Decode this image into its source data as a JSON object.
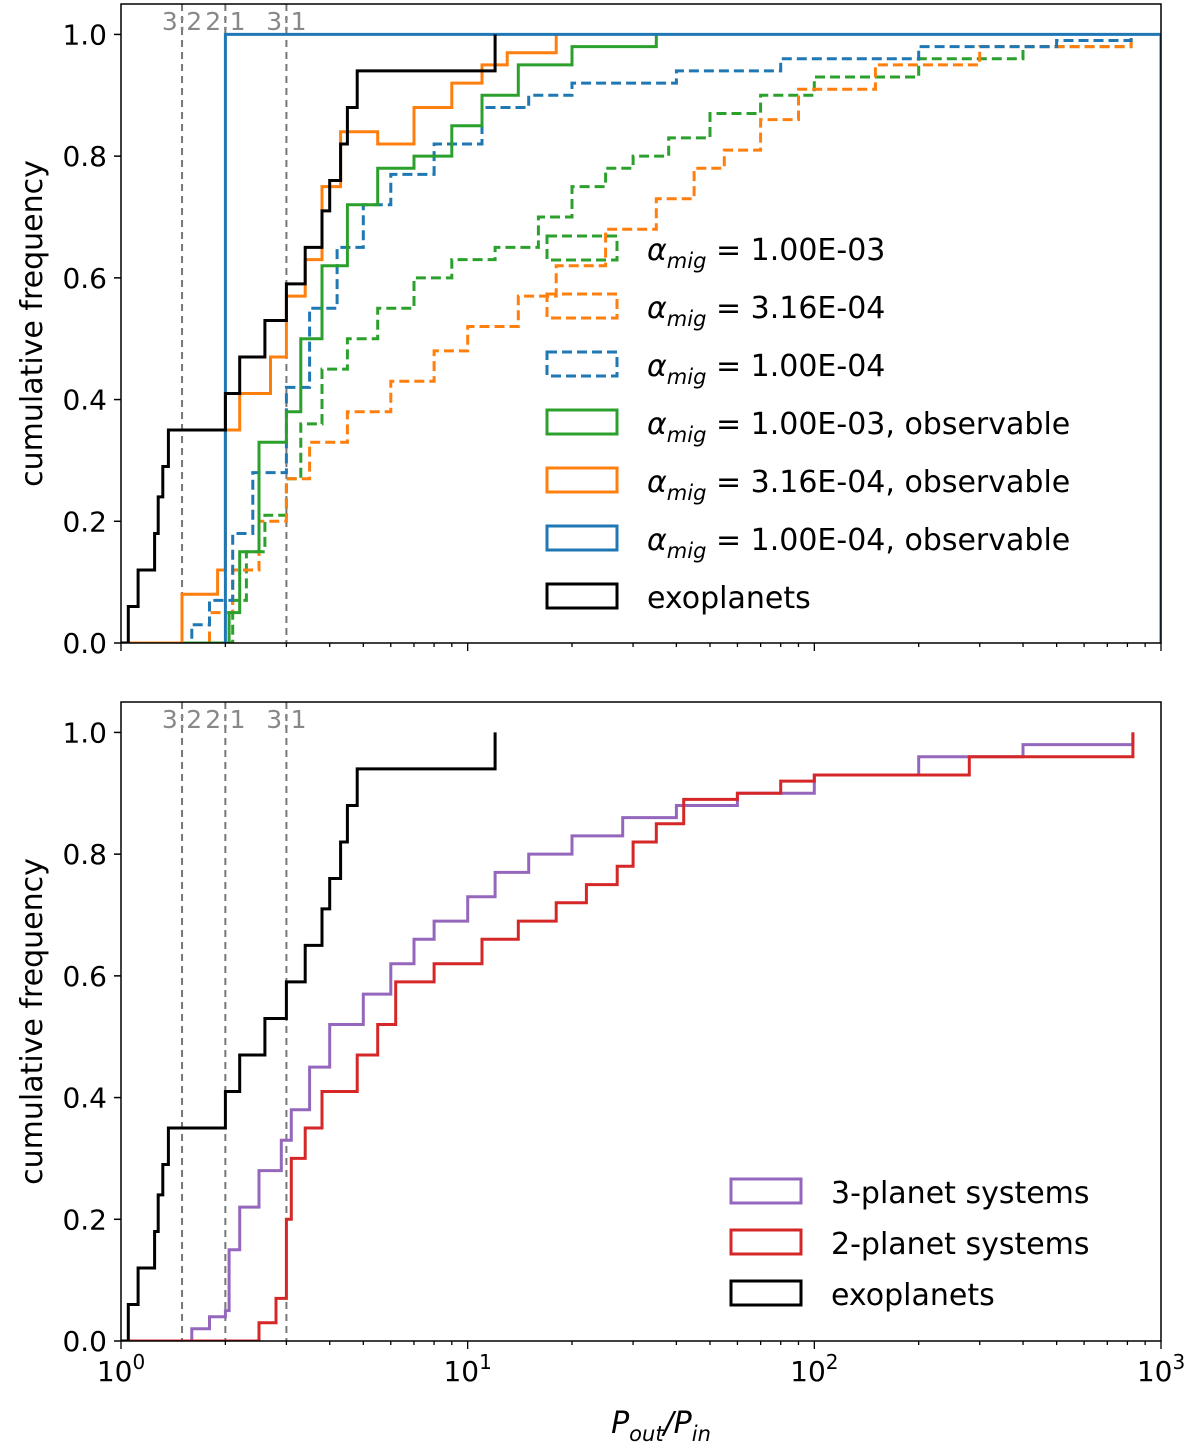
{
  "chart_data": [
    {
      "type": "line",
      "subtype": "cumulative-step",
      "xscale": "log",
      "xlim": [
        1,
        1000
      ],
      "ylim": [
        0,
        1.05
      ],
      "ylabel": "cumulative frequency",
      "xlabel": "",
      "show_x_tick_labels": false,
      "yticks": [
        0.0,
        0.2,
        0.4,
        0.6,
        0.8,
        1.0
      ],
      "ytick_labels": [
        "0.0",
        "0.2",
        "0.4",
        "0.6",
        "0.8",
        "1.0"
      ],
      "resonances": [
        {
          "label": "3:2",
          "x": 1.5
        },
        {
          "label": "2:1",
          "x": 2.0
        },
        {
          "label": "3:1",
          "x": 3.0
        }
      ],
      "legend_position": "right",
      "series": [
        {
          "key": "g_dash",
          "name": "1.00E-03",
          "color": "#2ca02c",
          "dash": true,
          "points": [
            [
              2.0,
              0.0
            ],
            [
              2.1,
              0.07
            ],
            [
              2.3,
              0.15
            ],
            [
              2.6,
              0.21
            ],
            [
              3.0,
              0.27
            ],
            [
              3.3,
              0.36
            ],
            [
              3.8,
              0.45
            ],
            [
              4.5,
              0.5
            ],
            [
              5.5,
              0.55
            ],
            [
              7,
              0.6
            ],
            [
              9,
              0.63
            ],
            [
              12,
              0.65
            ],
            [
              16,
              0.7
            ],
            [
              20,
              0.75
            ],
            [
              25,
              0.78
            ],
            [
              30,
              0.8
            ],
            [
              38,
              0.83
            ],
            [
              50,
              0.87
            ],
            [
              70,
              0.9
            ],
            [
              100,
              0.93
            ],
            [
              200,
              0.96
            ],
            [
              400,
              0.98
            ],
            [
              820,
              1.0
            ]
          ]
        },
        {
          "key": "o_dash",
          "name": "3.16E-04",
          "color": "#ff7f0e",
          "dash": true,
          "points": [
            [
              1.5,
              0.0
            ],
            [
              1.8,
              0.05
            ],
            [
              2.1,
              0.12
            ],
            [
              2.5,
              0.2
            ],
            [
              3.0,
              0.27
            ],
            [
              3.5,
              0.33
            ],
            [
              4.5,
              0.38
            ],
            [
              6,
              0.43
            ],
            [
              8,
              0.48
            ],
            [
              10,
              0.52
            ],
            [
              14,
              0.57
            ],
            [
              18,
              0.62
            ],
            [
              25,
              0.68
            ],
            [
              35,
              0.73
            ],
            [
              45,
              0.78
            ],
            [
              55,
              0.81
            ],
            [
              70,
              0.86
            ],
            [
              90,
              0.91
            ],
            [
              150,
              0.95
            ],
            [
              300,
              0.98
            ],
            [
              820,
              1.0
            ]
          ]
        },
        {
          "key": "b_dash",
          "name": "1.00E-04",
          "color": "#1f77b4",
          "dash": true,
          "points": [
            [
              1.5,
              0.0
            ],
            [
              1.6,
              0.03
            ],
            [
              1.8,
              0.07
            ],
            [
              2.1,
              0.18
            ],
            [
              2.4,
              0.28
            ],
            [
              3.0,
              0.42
            ],
            [
              3.5,
              0.55
            ],
            [
              4.2,
              0.65
            ],
            [
              5,
              0.72
            ],
            [
              6,
              0.77
            ],
            [
              8,
              0.82
            ],
            [
              11,
              0.88
            ],
            [
              15,
              0.9
            ],
            [
              20,
              0.92
            ],
            [
              40,
              0.94
            ],
            [
              80,
              0.96
            ],
            [
              200,
              0.98
            ],
            [
              500,
              0.99
            ],
            [
              820,
              1.0
            ]
          ]
        },
        {
          "key": "g_solid",
          "name": "1.00E-03, observable",
          "color": "#2ca02c",
          "dash": false,
          "points": [
            [
              2.0,
              0.0
            ],
            [
              2.05,
              0.05
            ],
            [
              2.2,
              0.15
            ],
            [
              2.5,
              0.33
            ],
            [
              3.0,
              0.38
            ],
            [
              3.3,
              0.5
            ],
            [
              3.8,
              0.62
            ],
            [
              4.5,
              0.72
            ],
            [
              5.5,
              0.78
            ],
            [
              7,
              0.8
            ],
            [
              9,
              0.85
            ],
            [
              11,
              0.9
            ],
            [
              14,
              0.95
            ],
            [
              20,
              0.98
            ],
            [
              35,
              1.0
            ]
          ]
        },
        {
          "key": "o_solid",
          "name": "3.16E-04, observable",
          "color": "#ff7f0e",
          "dash": false,
          "points": [
            [
              1.5,
              0.0
            ],
            [
              1.5,
              0.08
            ],
            [
              1.9,
              0.12
            ],
            [
              2.0,
              0.35
            ],
            [
              2.2,
              0.41
            ],
            [
              2.7,
              0.47
            ],
            [
              3.0,
              0.57
            ],
            [
              3.4,
              0.63
            ],
            [
              3.8,
              0.75
            ],
            [
              4.3,
              0.84
            ],
            [
              5.5,
              0.82
            ],
            [
              7,
              0.88
            ],
            [
              9,
              0.92
            ],
            [
              11,
              0.95
            ],
            [
              13,
              0.97
            ],
            [
              18,
              1.0
            ]
          ]
        },
        {
          "key": "b_solid",
          "name": "1.00E-04, observable",
          "color": "#1f77b4",
          "dash": false,
          "boxed": true,
          "points": [
            [
              2.0,
              0.0
            ],
            [
              2.0,
              1.0
            ],
            [
              1000,
              1.0
            ],
            [
              1000,
              0.0
            ]
          ]
        },
        {
          "key": "exo_top",
          "name": "exoplanets",
          "color": "#000000",
          "dash": false,
          "points": [
            [
              1.05,
              0.0
            ],
            [
              1.05,
              0.06
            ],
            [
              1.12,
              0.12
            ],
            [
              1.25,
              0.18
            ],
            [
              1.28,
              0.24
            ],
            [
              1.32,
              0.29
            ],
            [
              1.37,
              0.35
            ],
            [
              2.0,
              0.41
            ],
            [
              2.2,
              0.47
            ],
            [
              2.6,
              0.53
            ],
            [
              3.0,
              0.59
            ],
            [
              3.4,
              0.65
            ],
            [
              3.8,
              0.71
            ],
            [
              4.0,
              0.76
            ],
            [
              4.3,
              0.82
            ],
            [
              4.5,
              0.88
            ],
            [
              4.8,
              0.94
            ],
            [
              12,
              1.0
            ]
          ]
        }
      ],
      "legend": [
        {
          "key": "g_dash",
          "label": "1.00E-03"
        },
        {
          "key": "o_dash",
          "label": "3.16E-04"
        },
        {
          "key": "b_dash",
          "label": "1.00E-04"
        },
        {
          "key": "g_solid",
          "label": "1.00E-03, observable"
        },
        {
          "key": "o_solid",
          "label": "3.16E-04, observable"
        },
        {
          "key": "b_solid",
          "label": "1.00E-04, observable"
        },
        {
          "key": "exo_top",
          "label": "exoplanets"
        }
      ]
    },
    {
      "type": "line",
      "subtype": "cumulative-step",
      "xscale": "log",
      "xlim": [
        1,
        1000
      ],
      "ylim": [
        0,
        1.05
      ],
      "ylabel": "cumulative frequency",
      "xlabel": "P_out/P_in",
      "show_x_tick_labels": true,
      "xticks": [
        1,
        10,
        100,
        1000
      ],
      "xtick_labels": [
        {
          "base": "10",
          "exp": "0"
        },
        {
          "base": "10",
          "exp": "1"
        },
        {
          "base": "10",
          "exp": "2"
        },
        {
          "base": "10",
          "exp": "3"
        }
      ],
      "yticks": [
        0.0,
        0.2,
        0.4,
        0.6,
        0.8,
        1.0
      ],
      "ytick_labels": [
        "0.0",
        "0.2",
        "0.4",
        "0.6",
        "0.8",
        "1.0"
      ],
      "resonances": [
        {
          "label": "3:2",
          "x": 1.5
        },
        {
          "label": "2:1",
          "x": 2.0
        },
        {
          "label": "3:1",
          "x": 3.0
        }
      ],
      "legend_position": "lower-right",
      "series": [
        {
          "key": "purple",
          "name": "3-planet systems",
          "color": "#9467bd",
          "dash": false,
          "points": [
            [
              1.5,
              0.0
            ],
            [
              1.6,
              0.02
            ],
            [
              1.8,
              0.04
            ],
            [
              2.0,
              0.05
            ],
            [
              2.05,
              0.15
            ],
            [
              2.2,
              0.22
            ],
            [
              2.5,
              0.28
            ],
            [
              2.9,
              0.33
            ],
            [
              3.1,
              0.38
            ],
            [
              3.5,
              0.45
            ],
            [
              4,
              0.52
            ],
            [
              5,
              0.57
            ],
            [
              6,
              0.62
            ],
            [
              7,
              0.66
            ],
            [
              8,
              0.69
            ],
            [
              10,
              0.73
            ],
            [
              12,
              0.77
            ],
            [
              15,
              0.8
            ],
            [
              20,
              0.83
            ],
            [
              28,
              0.86
            ],
            [
              40,
              0.88
            ],
            [
              60,
              0.9
            ],
            [
              100,
              0.93
            ],
            [
              200,
              0.96
            ],
            [
              400,
              0.98
            ],
            [
              830,
              1.0
            ]
          ]
        },
        {
          "key": "red",
          "name": "2-planet systems",
          "color": "#d62728",
          "dash": false,
          "points": [
            [
              2.3,
              0.0
            ],
            [
              2.5,
              0.03
            ],
            [
              2.8,
              0.07
            ],
            [
              3.0,
              0.2
            ],
            [
              3.1,
              0.3
            ],
            [
              3.4,
              0.35
            ],
            [
              3.8,
              0.41
            ],
            [
              4.8,
              0.47
            ],
            [
              5.5,
              0.52
            ],
            [
              6.2,
              0.59
            ],
            [
              8,
              0.62
            ],
            [
              11,
              0.66
            ],
            [
              14,
              0.69
            ],
            [
              18,
              0.72
            ],
            [
              22,
              0.75
            ],
            [
              27,
              0.78
            ],
            [
              30,
              0.82
            ],
            [
              35,
              0.85
            ],
            [
              42,
              0.89
            ],
            [
              50,
              0.89
            ],
            [
              60,
              0.9
            ],
            [
              80,
              0.92
            ],
            [
              100,
              0.93
            ],
            [
              280,
              0.96
            ],
            [
              830,
              1.0
            ]
          ]
        },
        {
          "key": "exo_bot",
          "name": "exoplanets",
          "color": "#000000",
          "dash": false,
          "points": [
            [
              1.05,
              0.0
            ],
            [
              1.05,
              0.06
            ],
            [
              1.12,
              0.12
            ],
            [
              1.25,
              0.18
            ],
            [
              1.28,
              0.24
            ],
            [
              1.32,
              0.29
            ],
            [
              1.37,
              0.35
            ],
            [
              2.0,
              0.41
            ],
            [
              2.2,
              0.47
            ],
            [
              2.6,
              0.53
            ],
            [
              3.0,
              0.59
            ],
            [
              3.4,
              0.65
            ],
            [
              3.8,
              0.71
            ],
            [
              4.0,
              0.76
            ],
            [
              4.3,
              0.82
            ],
            [
              4.5,
              0.88
            ],
            [
              4.8,
              0.94
            ],
            [
              12,
              1.0
            ]
          ]
        }
      ],
      "legend": [
        {
          "key": "purple",
          "label": "3-planet systems"
        },
        {
          "key": "red",
          "label": "2-planet systems"
        },
        {
          "key": "exo_bot",
          "label": "exoplanets"
        }
      ]
    }
  ]
}
